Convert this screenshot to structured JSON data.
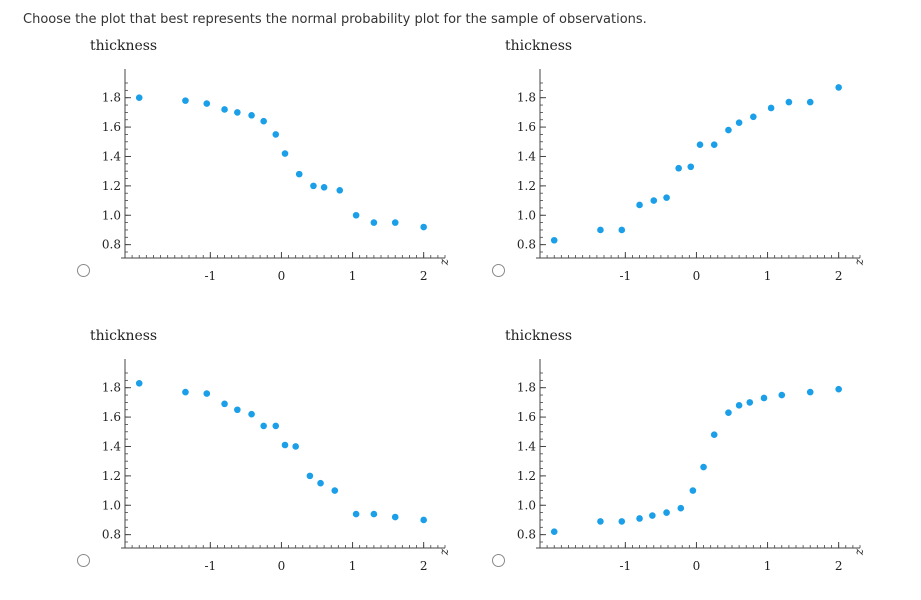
{
  "question": "Choose the plot that best represents the normal probability plot for the sample of observations.",
  "options": [
    {
      "ylabel": "thickness",
      "xlabel": "z",
      "points": [
        [
          -2.0,
          1.8
        ],
        [
          -1.35,
          1.78
        ],
        [
          -1.05,
          1.76
        ],
        [
          -0.8,
          1.72
        ],
        [
          -0.62,
          1.7
        ],
        [
          -0.42,
          1.68
        ],
        [
          -0.25,
          1.64
        ],
        [
          -0.08,
          1.55
        ],
        [
          0.05,
          1.42
        ],
        [
          0.25,
          1.28
        ],
        [
          0.45,
          1.2
        ],
        [
          0.6,
          1.19
        ],
        [
          0.82,
          1.17
        ],
        [
          1.05,
          1.0
        ],
        [
          1.3,
          0.95
        ],
        [
          1.6,
          0.95
        ],
        [
          2.0,
          0.92
        ]
      ]
    },
    {
      "ylabel": "thickness",
      "xlabel": "z",
      "points": [
        [
          -2.0,
          0.83
        ],
        [
          -1.35,
          0.9
        ],
        [
          -1.05,
          0.9
        ],
        [
          -0.8,
          1.07
        ],
        [
          -0.6,
          1.1
        ],
        [
          -0.42,
          1.12
        ],
        [
          -0.25,
          1.32
        ],
        [
          -0.08,
          1.33
        ],
        [
          0.05,
          1.48
        ],
        [
          0.25,
          1.48
        ],
        [
          0.45,
          1.58
        ],
        [
          0.6,
          1.63
        ],
        [
          0.8,
          1.67
        ],
        [
          1.05,
          1.73
        ],
        [
          1.3,
          1.77
        ],
        [
          1.6,
          1.77
        ],
        [
          2.0,
          1.87
        ]
      ]
    },
    {
      "ylabel": "thickness",
      "xlabel": "z",
      "points": [
        [
          -2.0,
          1.83
        ],
        [
          -1.35,
          1.77
        ],
        [
          -1.05,
          1.76
        ],
        [
          -0.8,
          1.69
        ],
        [
          -0.62,
          1.65
        ],
        [
          -0.42,
          1.62
        ],
        [
          -0.25,
          1.54
        ],
        [
          -0.08,
          1.54
        ],
        [
          0.05,
          1.41
        ],
        [
          0.2,
          1.4
        ],
        [
          0.4,
          1.2
        ],
        [
          0.55,
          1.15
        ],
        [
          0.75,
          1.1
        ],
        [
          1.05,
          0.94
        ],
        [
          1.3,
          0.94
        ],
        [
          1.6,
          0.92
        ],
        [
          2.0,
          0.9
        ]
      ]
    },
    {
      "ylabel": "thickness",
      "xlabel": "z",
      "points": [
        [
          -2.0,
          0.82
        ],
        [
          -1.35,
          0.89
        ],
        [
          -1.05,
          0.89
        ],
        [
          -0.8,
          0.91
        ],
        [
          -0.62,
          0.93
        ],
        [
          -0.42,
          0.95
        ],
        [
          -0.22,
          0.98
        ],
        [
          -0.05,
          1.1
        ],
        [
          0.1,
          1.26
        ],
        [
          0.25,
          1.48
        ],
        [
          0.45,
          1.63
        ],
        [
          0.6,
          1.68
        ],
        [
          0.75,
          1.7
        ],
        [
          0.95,
          1.73
        ],
        [
          1.2,
          1.75
        ],
        [
          1.6,
          1.77
        ],
        [
          2.0,
          1.79
        ]
      ]
    }
  ],
  "axis": {
    "yticks": [
      "0.8",
      "1.0",
      "1.2",
      "1.4",
      "1.6",
      "1.8"
    ],
    "xticks": [
      "-1",
      "0",
      "1",
      "2"
    ],
    "ylim": [
      0.75,
      1.9
    ],
    "xlim": [
      -2.2,
      2.3
    ]
  },
  "colors": {
    "point": "#1a9fe8",
    "axis": "#444444",
    "text": "#333333"
  }
}
